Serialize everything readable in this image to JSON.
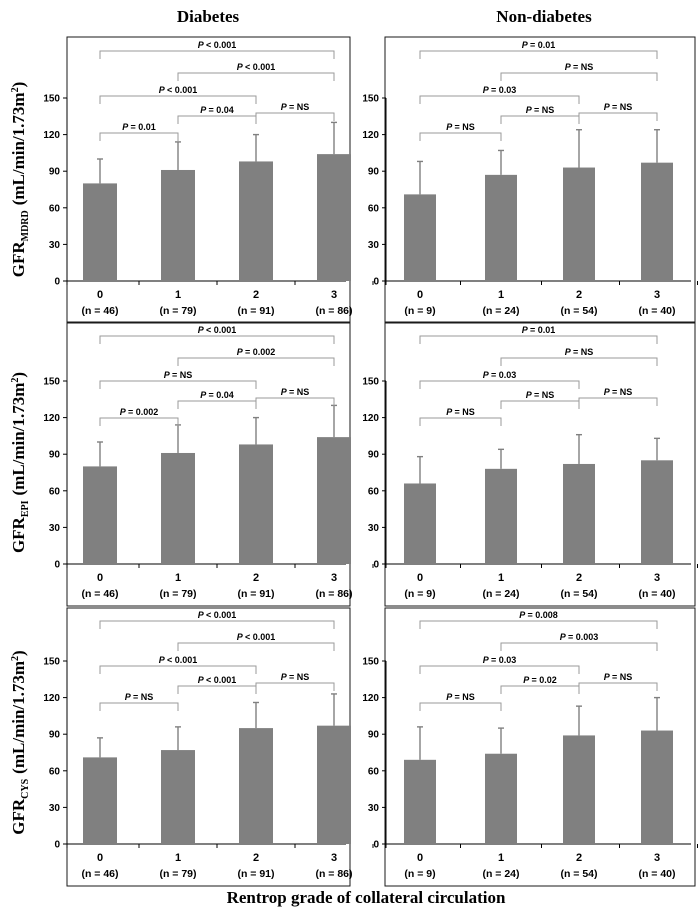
{
  "column_titles": [
    "Diabetes",
    "Non-diabetes"
  ],
  "x_axis_title": "Rentrop grade of collateral circulation",
  "chart_data": [
    {
      "type": "bar",
      "group": "Diabetes",
      "row": 0,
      "ylabel_main": "GFR",
      "ylabel_sub": "MDRD",
      "ylabel_unit": "(mL/min/1.73m",
      "ylim": [
        0,
        150
      ],
      "yticks": [
        0,
        30,
        60,
        90,
        120,
        150
      ],
      "categories": [
        "0",
        "1",
        "2",
        "3"
      ],
      "n_labels": [
        "(n = 46)",
        "(n = 79)",
        "(n = 91)",
        "(n = 86)"
      ],
      "values": [
        80,
        91,
        98,
        104
      ],
      "error_upper": [
        100,
        114,
        120,
        130
      ],
      "comparisons": [
        {
          "pair": [
            0,
            3
          ],
          "p_label": "< 0.001"
        },
        {
          "pair": [
            1,
            3
          ],
          "p_label": "< 0.001"
        },
        {
          "pair": [
            0,
            2
          ],
          "p_label": "< 0.001"
        },
        {
          "pair": [
            0,
            1
          ],
          "p_label": "= 0.01"
        },
        {
          "pair": [
            1,
            2
          ],
          "p_label": "= 0.04"
        },
        {
          "pair": [
            2,
            3
          ],
          "p_label": "= NS"
        }
      ]
    },
    {
      "type": "bar",
      "group": "Non-diabetes",
      "row": 0,
      "ylim": [
        0,
        150
      ],
      "yticks": [
        0,
        30,
        60,
        90,
        120,
        150
      ],
      "categories": [
        "0",
        "1",
        "2",
        "3"
      ],
      "n_labels": [
        "(n = 9)",
        "(n = 24)",
        "(n = 54)",
        "(n = 40)"
      ],
      "values": [
        71,
        87,
        93,
        97
      ],
      "error_upper": [
        98,
        107,
        124,
        124
      ],
      "comparisons": [
        {
          "pair": [
            0,
            3
          ],
          "p_label": "= 0.01"
        },
        {
          "pair": [
            1,
            3
          ],
          "p_label": "= NS"
        },
        {
          "pair": [
            0,
            2
          ],
          "p_label": "= 0.03"
        },
        {
          "pair": [
            0,
            1
          ],
          "p_label": "= NS"
        },
        {
          "pair": [
            1,
            2
          ],
          "p_label": "= NS"
        },
        {
          "pair": [
            2,
            3
          ],
          "p_label": "= NS"
        }
      ]
    },
    {
      "type": "bar",
      "group": "Diabetes",
      "row": 1,
      "ylabel_main": "GFR",
      "ylabel_sub": "EPI",
      "ylabel_unit": "(mL/min/1.73m",
      "ylim": [
        0,
        150
      ],
      "yticks": [
        0,
        30,
        60,
        90,
        120,
        150
      ],
      "categories": [
        "0",
        "1",
        "2",
        "3"
      ],
      "n_labels": [
        "(n = 46)",
        "(n = 79)",
        "(n = 91)",
        "(n = 86)"
      ],
      "values": [
        80,
        91,
        98,
        104
      ],
      "error_upper": [
        100,
        114,
        120,
        130
      ],
      "comparisons": [
        {
          "pair": [
            0,
            3
          ],
          "p_label": "< 0.001"
        },
        {
          "pair": [
            1,
            3
          ],
          "p_label": "= 0.002"
        },
        {
          "pair": [
            0,
            2
          ],
          "p_label": "= NS"
        },
        {
          "pair": [
            0,
            1
          ],
          "p_label": "= 0.002"
        },
        {
          "pair": [
            1,
            2
          ],
          "p_label": "= 0.04"
        },
        {
          "pair": [
            2,
            3
          ],
          "p_label": "= NS"
        }
      ]
    },
    {
      "type": "bar",
      "group": "Non-diabetes",
      "row": 1,
      "ylim": [
        0,
        150
      ],
      "yticks": [
        0,
        30,
        60,
        90,
        120,
        150
      ],
      "categories": [
        "0",
        "1",
        "2",
        "3"
      ],
      "n_labels": [
        "(n = 9)",
        "(n = 24)",
        "(n = 54)",
        "(n = 40)"
      ],
      "values": [
        66,
        78,
        82,
        85
      ],
      "error_upper": [
        88,
        94,
        106,
        103
      ],
      "comparisons": [
        {
          "pair": [
            0,
            3
          ],
          "p_label": "= 0.01"
        },
        {
          "pair": [
            1,
            3
          ],
          "p_label": "= NS"
        },
        {
          "pair": [
            0,
            2
          ],
          "p_label": "= 0.03"
        },
        {
          "pair": [
            0,
            1
          ],
          "p_label": "= NS"
        },
        {
          "pair": [
            1,
            2
          ],
          "p_label": "= NS"
        },
        {
          "pair": [
            2,
            3
          ],
          "p_label": "= NS"
        }
      ]
    },
    {
      "type": "bar",
      "group": "Diabetes",
      "row": 2,
      "ylabel_main": "GFR",
      "ylabel_sub": "CYS",
      "ylabel_unit": "(mL/min/1.73m",
      "ylim": [
        0,
        150
      ],
      "yticks": [
        0,
        30,
        60,
        90,
        120,
        150
      ],
      "categories": [
        "0",
        "1",
        "2",
        "3"
      ],
      "n_labels": [
        "(n = 46)",
        "(n = 79)",
        "(n = 91)",
        "(n = 86)"
      ],
      "values": [
        71,
        77,
        95,
        97
      ],
      "error_upper": [
        87,
        96,
        116,
        123
      ],
      "comparisons": [
        {
          "pair": [
            0,
            3
          ],
          "p_label": "< 0.001"
        },
        {
          "pair": [
            1,
            3
          ],
          "p_label": "< 0.001"
        },
        {
          "pair": [
            0,
            2
          ],
          "p_label": "< 0.001"
        },
        {
          "pair": [
            0,
            1
          ],
          "p_label": "= NS"
        },
        {
          "pair": [
            1,
            2
          ],
          "p_label": "< 0.001"
        },
        {
          "pair": [
            2,
            3
          ],
          "p_label": "= NS"
        }
      ]
    },
    {
      "type": "bar",
      "group": "Non-diabetes",
      "row": 2,
      "ylim": [
        0,
        150
      ],
      "yticks": [
        0,
        30,
        60,
        90,
        120,
        150
      ],
      "categories": [
        "0",
        "1",
        "2",
        "3"
      ],
      "n_labels": [
        "(n = 9)",
        "(n = 24)",
        "(n = 54)",
        "(n = 40)"
      ],
      "values": [
        69,
        74,
        89,
        93
      ],
      "error_upper": [
        96,
        95,
        113,
        120
      ],
      "comparisons": [
        {
          "pair": [
            0,
            3
          ],
          "p_label": "= 0.008"
        },
        {
          "pair": [
            1,
            3
          ],
          "p_label": "= 0.003"
        },
        {
          "pair": [
            0,
            2
          ],
          "p_label": "= 0.03"
        },
        {
          "pair": [
            0,
            1
          ],
          "p_label": "= NS"
        },
        {
          "pair": [
            1,
            2
          ],
          "p_label": "= 0.02"
        },
        {
          "pair": [
            2,
            3
          ],
          "p_label": "= NS"
        }
      ]
    }
  ]
}
